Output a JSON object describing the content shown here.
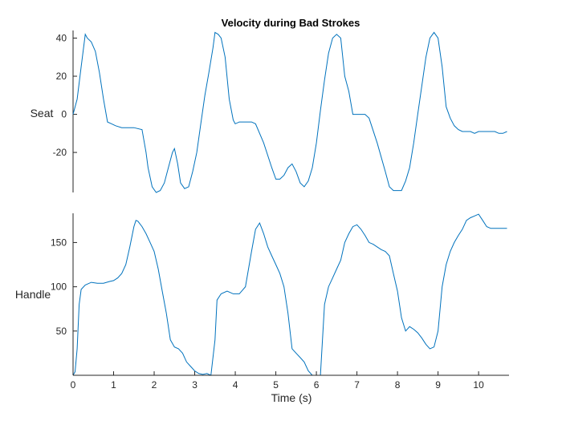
{
  "chart_data": {
    "type": "line",
    "title": "Velocity during Bad Strokes",
    "xlabel": "Time (s)",
    "xlim": [
      0,
      10.75
    ],
    "x_ticks": [
      "0",
      "1",
      "2",
      "3",
      "4",
      "5",
      "6",
      "7",
      "8",
      "9",
      "10"
    ],
    "line_color": "#0072BD",
    "axis_color": "#262626",
    "panels": [
      {
        "ylabel": "Seat",
        "ylim": [
          -41,
          44
        ],
        "y_ticks": [
          "-20",
          "0",
          "20",
          "40"
        ],
        "series": [
          {
            "x": [
              0,
              0.1,
              0.2,
              0.3,
              0.35,
              0.45,
              0.55,
              0.65,
              0.75,
              0.85,
              0.95,
              1.05,
              1.2,
              1.35,
              1.5,
              1.7,
              1.8,
              1.85,
              1.95,
              2.05,
              2.15,
              2.25,
              2.35,
              2.45,
              2.5,
              2.58,
              2.65,
              2.75,
              2.85,
              2.95,
              3.05,
              3.15,
              3.25,
              3.35,
              3.45,
              3.5,
              3.58,
              3.65,
              3.75,
              3.85,
              3.95,
              4.0,
              4.1,
              4.2,
              4.3,
              4.4,
              4.5,
              4.7,
              4.9,
              5.0,
              5.1,
              5.2,
              5.3,
              5.4,
              5.5,
              5.6,
              5.7,
              5.8,
              5.9,
              6.0,
              6.1,
              6.2,
              6.3,
              6.4,
              6.5,
              6.6,
              6.7,
              6.8,
              6.9,
              7.0,
              7.1,
              7.2,
              7.3,
              7.5,
              7.7,
              7.8,
              7.9,
              8.0,
              8.1,
              8.2,
              8.3,
              8.4,
              8.5,
              8.6,
              8.7,
              8.8,
              8.9,
              9.0,
              9.1,
              9.2,
              9.3,
              9.4,
              9.5,
              9.6,
              9.7,
              9.8,
              9.9,
              10.0,
              10.1,
              10.2,
              10.3,
              10.4,
              10.5,
              10.6,
              10.7
            ],
            "y": [
              0,
              8,
              25,
              42,
              40,
              38,
              33,
              22,
              8,
              -4,
              -5,
              -6,
              -7,
              -7,
              -7,
              -8,
              -20,
              -28,
              -38,
              -41,
              -40,
              -36,
              -28,
              -20,
              -18,
              -26,
              -36,
              -39,
              -38,
              -30,
              -20,
              -5,
              10,
              22,
              35,
              43,
              42,
              40,
              30,
              8,
              -3,
              -5,
              -4,
              -4,
              -4,
              -4,
              -5,
              -15,
              -28,
              -34,
              -34,
              -32,
              -28,
              -26,
              -30,
              -36,
              -38,
              -35,
              -28,
              -15,
              2,
              18,
              32,
              40,
              42,
              40,
              20,
              12,
              0,
              0,
              0,
              0,
              -2,
              -15,
              -30,
              -38,
              -40,
              -40,
              -40,
              -35,
              -28,
              -15,
              0,
              15,
              30,
              40,
              43,
              40,
              25,
              4,
              -2,
              -6,
              -8,
              -9,
              -9,
              -9,
              -10,
              -9,
              -9,
              -9,
              -9,
              -9,
              -10,
              -10,
              -9
            ],
            "x_fixed": true
          }
        ]
      },
      {
        "ylabel": "Handle",
        "ylim": [
          0,
          183
        ],
        "y_ticks": [
          "50",
          "100",
          "150"
        ],
        "series": [
          {
            "x": [
              0,
              0.05,
              0.1,
              0.15,
              0.2,
              0.3,
              0.45,
              0.6,
              0.75,
              0.9,
              1.0,
              1.1,
              1.2,
              1.3,
              1.4,
              1.5,
              1.55,
              1.6,
              1.7,
              1.8,
              1.9,
              2.0,
              2.1,
              2.2,
              2.3,
              2.4,
              2.5,
              2.6,
              2.7,
              2.8,
              2.9,
              3.0,
              3.1,
              3.2,
              3.3,
              3.4,
              3.5,
              3.55,
              3.65,
              3.8,
              3.95,
              4.1,
              4.25,
              4.4,
              4.5,
              4.6,
              4.7,
              4.8,
              4.9,
              5.0,
              5.1,
              5.2,
              5.3,
              5.4,
              5.5,
              5.6,
              5.7,
              5.8,
              5.9,
              6.0,
              6.1,
              6.2,
              6.3,
              6.4,
              6.5,
              6.6,
              6.7,
              6.8,
              6.9,
              7.0,
              7.1,
              7.2,
              7.3,
              7.4,
              7.5,
              7.6,
              7.7,
              7.8,
              7.9,
              8.0,
              8.1,
              8.2,
              8.3,
              8.4,
              8.5,
              8.6,
              8.7,
              8.8,
              8.9,
              9.0,
              9.1,
              9.2,
              9.3,
              9.4,
              9.5,
              9.6,
              9.7,
              9.8,
              9.9,
              10.0,
              10.1,
              10.2,
              10.3,
              10.4,
              10.5,
              10.6,
              10.7
            ],
            "y": [
              0,
              4,
              30,
              80,
              97,
              102,
              105,
              104,
              104,
              106,
              107,
              110,
              115,
              125,
              145,
              168,
              175,
              174,
              168,
              160,
              150,
              140,
              120,
              95,
              70,
              40,
              32,
              30,
              25,
              15,
              10,
              5,
              2,
              1,
              2,
              0,
              40,
              85,
              92,
              95,
              92,
              92,
              100,
              140,
              165,
              172,
              160,
              145,
              135,
              125,
              115,
              100,
              70,
              30,
              25,
              20,
              15,
              5,
              0,
              0,
              0,
              80,
              100,
              110,
              120,
              130,
              150,
              160,
              168,
              170,
              165,
              158,
              150,
              148,
              145,
              142,
              140,
              135,
              115,
              95,
              65,
              50,
              55,
              52,
              48,
              42,
              35,
              30,
              32,
              50,
              100,
              125,
              140,
              150,
              158,
              165,
              175,
              178,
              180,
              182,
              175,
              168,
              166,
              166,
              166,
              166,
              166
            ],
            "x_fixed": true
          }
        ]
      }
    ]
  }
}
